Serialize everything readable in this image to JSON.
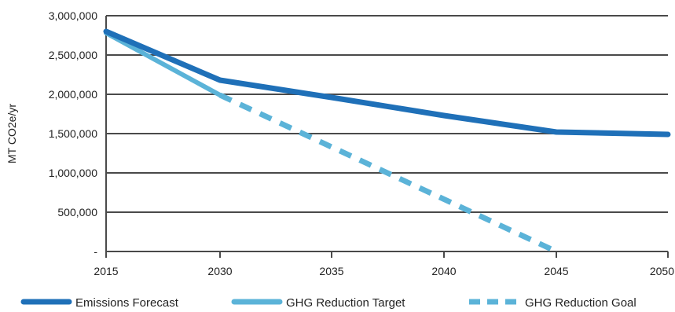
{
  "chart_data": {
    "type": "line",
    "ylabel": "MT CO2e/yr",
    "x": [
      2015,
      2030,
      2035,
      2040,
      2045,
      2050
    ],
    "x_tick_labels": [
      "2015",
      "2030",
      "2035",
      "2040",
      "2045",
      "2050"
    ],
    "y_tick_values": [
      0,
      500000,
      1000000,
      1500000,
      2000000,
      2500000,
      3000000
    ],
    "y_tick_labels": [
      "-",
      "500,000",
      "1,000,000",
      "1,500,000",
      "2,000,000",
      "2,500,000",
      "3,000,000"
    ],
    "ylim": [
      0,
      3000000
    ],
    "grid": true,
    "legend_position": "bottom",
    "series": [
      {
        "name": "Emissions Forecast",
        "style": "solid",
        "color": "#1f70b8",
        "points": [
          [
            2015,
            2800000
          ],
          [
            2030,
            2180000
          ],
          [
            2035,
            1960000
          ],
          [
            2040,
            1730000
          ],
          [
            2045,
            1520000
          ],
          [
            2050,
            1490000
          ]
        ]
      },
      {
        "name": "GHG Reduction Target",
        "style": "solid",
        "color": "#5bb3d8",
        "points": [
          [
            2015,
            2780000
          ],
          [
            2030,
            1990000
          ]
        ]
      },
      {
        "name": "GHG Reduction Goal",
        "style": "dashed",
        "color": "#5bb3d8",
        "points": [
          [
            2030,
            1990000
          ],
          [
            2045,
            0
          ]
        ]
      }
    ]
  }
}
